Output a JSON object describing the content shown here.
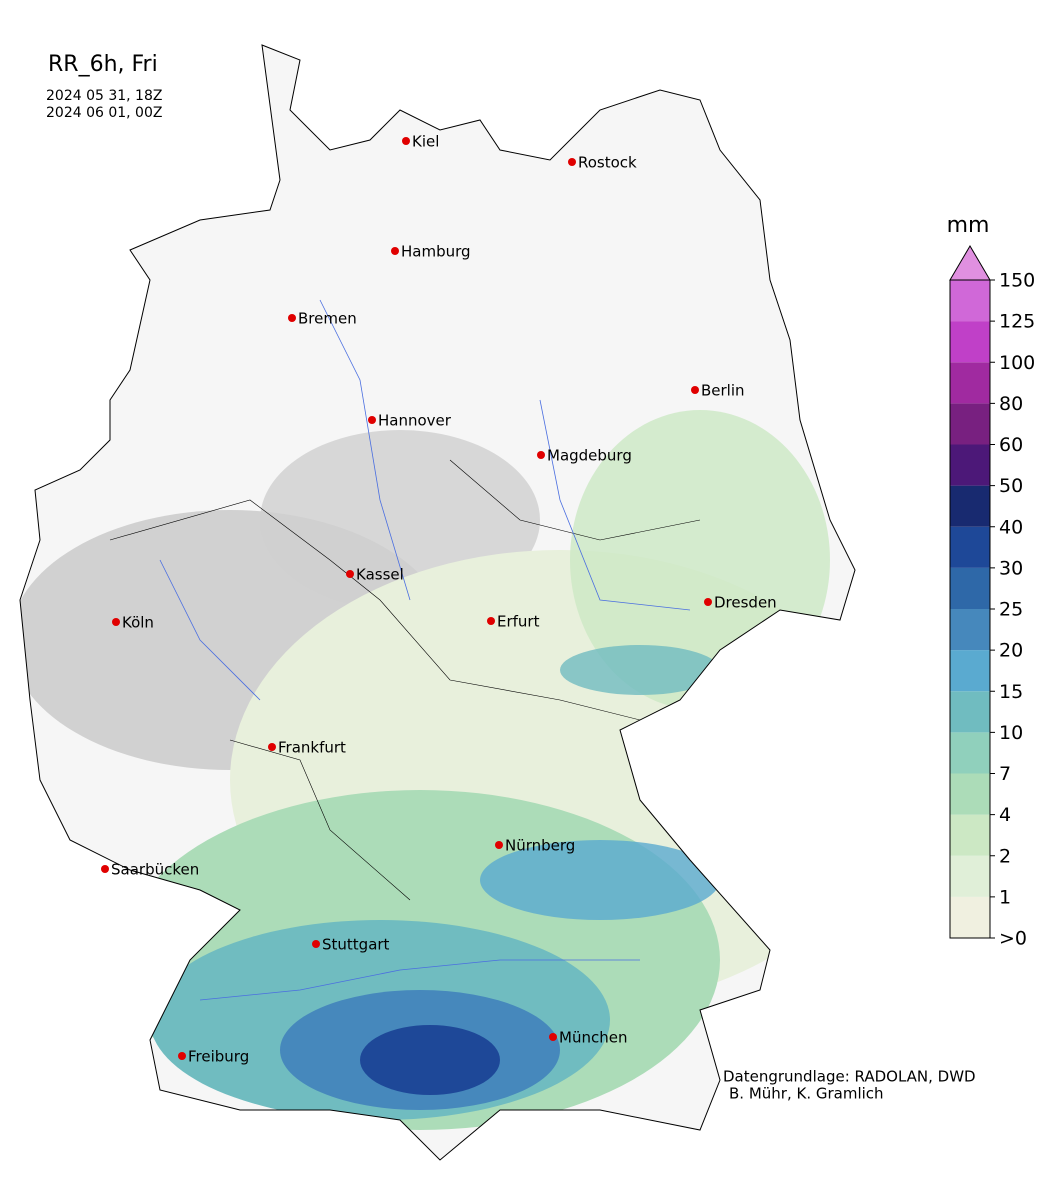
{
  "header": {
    "title": "RR_6h, Fri",
    "dates": [
      "2024 05 31, 18Z",
      "2024 06 01, 00Z"
    ]
  },
  "cities": [
    "Kiel",
    "Rostock",
    "Hamburg",
    "Bremen",
    "Berlin",
    "Hannover",
    "Magdeburg",
    "Kassel",
    "Dresden",
    "Köln",
    "Erfurt",
    "Frankfurt",
    "Nürnberg",
    "Saarbücken",
    "Stuttgart",
    "München",
    "Freiburg"
  ],
  "colorbar": {
    "unit": "mm",
    "ticks": [
      {
        "value": 0,
        "label": ">0"
      },
      1,
      2,
      4,
      7,
      10,
      15,
      20,
      25,
      30,
      40,
      50,
      60,
      80,
      100,
      125,
      150
    ],
    "colors": [
      "#f0f0e0",
      "#e0efd8",
      "#cce8c4",
      "#acdcb8",
      "#90d0bc",
      "#70bcc0",
      "#5aaad0",
      "#4688bc",
      "#2e68a8",
      "#1e4898",
      "#182a70",
      "#4c1878",
      "#782080",
      "#a02aa0",
      "#c040c8",
      "#d068d8"
    ],
    "extend_color": "#e090e0"
  },
  "credits": [
    "Datengrundlage: RADOLAN, DWD",
    "B. Mühr, K. Gramlich"
  ]
}
